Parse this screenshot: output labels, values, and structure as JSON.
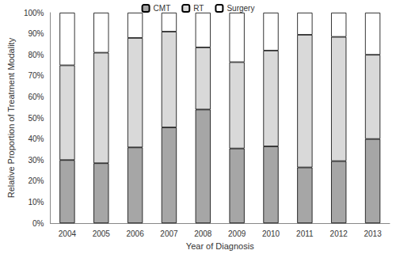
{
  "chart_data": {
    "type": "bar",
    "stacked": true,
    "grid": false,
    "legend": "top",
    "x_label": "Year of Diagnosis",
    "y_label": "Relative Proportion of Treatment Modality",
    "categories": [
      "2004",
      "2005",
      "2006",
      "2007",
      "2008",
      "2009",
      "2010",
      "2011",
      "2012",
      "2013"
    ],
    "series": [
      {
        "name": "CMT",
        "color": "#a6a6a6",
        "values": [
          30,
          28.5,
          36,
          45.5,
          54,
          35.5,
          36.5,
          26.5,
          29.5,
          40
        ]
      },
      {
        "name": "RT",
        "color": "#d9d9d9",
        "values": [
          45,
          52.5,
          52,
          45.5,
          29.5,
          41,
          45.5,
          63,
          59,
          40
        ]
      },
      {
        "name": "Surgery",
        "color": "#ffffff",
        "values": [
          25,
          19,
          12,
          9,
          16.5,
          23.5,
          18,
          10.5,
          11.5,
          20
        ]
      }
    ],
    "ylim": [
      0,
      100
    ],
    "yticks": [
      {
        "value": 0,
        "label": "0%"
      },
      {
        "value": 10,
        "label": "10%"
      },
      {
        "value": 20,
        "label": "20%"
      },
      {
        "value": 30,
        "label": "30%"
      },
      {
        "value": 40,
        "label": "40%"
      },
      {
        "value": 50,
        "label": "50%"
      },
      {
        "value": 60,
        "label": "60%"
      },
      {
        "value": 70,
        "label": "70%"
      },
      {
        "value": 80,
        "label": "80%"
      },
      {
        "value": 90,
        "label": "90%"
      },
      {
        "value": 100,
        "label": "100%"
      }
    ]
  }
}
